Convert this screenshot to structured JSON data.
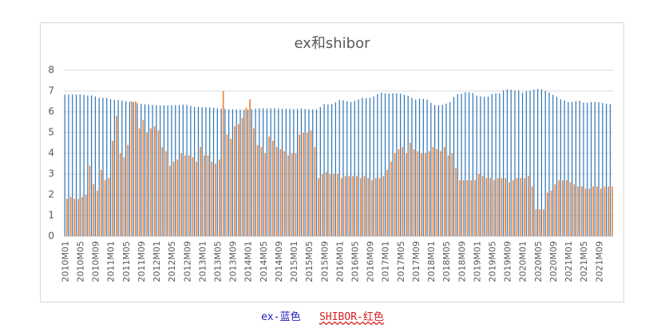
{
  "chart_data": {
    "type": "bar",
    "title": "ex和shibor",
    "categories": [
      "2010M01",
      null,
      null,
      null,
      "2010M05",
      null,
      null,
      null,
      "2010M09",
      null,
      null,
      null,
      "2011M01",
      null,
      null,
      null,
      "2011M05",
      null,
      null,
      null,
      "2011M09",
      null,
      null,
      null,
      "2012M01",
      null,
      null,
      null,
      "2012M05",
      null,
      null,
      null,
      "2012M09",
      null,
      null,
      null,
      "2013M01",
      null,
      null,
      null,
      "2013M05",
      null,
      null,
      null,
      "2013M09",
      null,
      null,
      null,
      "2014M01",
      null,
      null,
      null,
      "2014M05",
      null,
      null,
      null,
      "2014M09",
      null,
      null,
      null,
      "2015M01",
      null,
      null,
      null,
      "2015M05",
      null,
      null,
      null,
      "2015M09",
      null,
      null,
      null,
      "2016M01",
      null,
      null,
      null,
      "2016M05",
      null,
      null,
      null,
      "2016M09",
      null,
      null,
      null,
      "2017M01",
      null,
      null,
      null,
      "2017M05",
      null,
      null,
      null,
      "2017M09",
      null,
      null,
      null,
      "2018M01",
      null,
      null,
      null,
      "2018M05",
      null,
      null,
      null,
      "2018M09",
      null,
      null,
      null,
      "2019M01",
      null,
      null,
      null,
      "2019M05",
      null,
      null,
      null,
      "2019M09",
      null,
      null,
      null,
      "2020M01",
      null,
      null,
      null,
      "2020M05",
      null,
      null,
      null,
      "2020M09",
      null,
      null,
      null,
      "2021M01",
      null,
      null,
      null,
      "2021M05",
      null,
      null,
      null,
      "2021M09",
      null,
      null,
      null
    ],
    "series": [
      {
        "color": "#2e75b6",
        "values": [
          6.83,
          6.83,
          6.83,
          6.83,
          6.83,
          6.82,
          6.78,
          6.79,
          6.74,
          6.67,
          6.67,
          6.66,
          6.6,
          6.58,
          6.57,
          6.53,
          6.5,
          6.48,
          6.46,
          6.41,
          6.38,
          6.36,
          6.34,
          6.32,
          6.31,
          6.3,
          6.31,
          6.3,
          6.31,
          6.32,
          6.32,
          6.34,
          6.33,
          6.28,
          6.23,
          6.23,
          6.22,
          6.22,
          6.21,
          6.19,
          6.16,
          6.15,
          6.14,
          6.12,
          6.12,
          6.11,
          6.1,
          6.09,
          6.1,
          6.12,
          6.15,
          6.16,
          6.16,
          6.15,
          6.16,
          6.16,
          6.15,
          6.14,
          6.14,
          6.14,
          6.13,
          6.14,
          6.15,
          6.13,
          6.12,
          6.11,
          6.12,
          6.23,
          6.37,
          6.35,
          6.37,
          6.45,
          6.57,
          6.55,
          6.51,
          6.47,
          6.53,
          6.59,
          6.67,
          6.65,
          6.67,
          6.74,
          6.85,
          6.92,
          6.89,
          6.87,
          6.89,
          6.89,
          6.87,
          6.81,
          6.77,
          6.67,
          6.59,
          6.63,
          6.62,
          6.59,
          6.43,
          6.32,
          6.31,
          6.33,
          6.39,
          6.47,
          6.72,
          6.85,
          6.86,
          6.94,
          6.94,
          6.9,
          6.78,
          6.74,
          6.72,
          6.73,
          6.85,
          6.88,
          6.88,
          7.03,
          7.08,
          7.06,
          7.02,
          7.02,
          6.92,
          6.99,
          7.02,
          7.07,
          7.1,
          7.08,
          7.0,
          6.93,
          6.81,
          6.72,
          6.6,
          6.54,
          6.47,
          6.47,
          6.51,
          6.53,
          6.43,
          6.43,
          6.47,
          6.48,
          6.46,
          6.42,
          6.39,
          6.37
        ]
      },
      {
        "color": "#ed7d31",
        "values": [
          1.8,
          1.9,
          1.8,
          1.8,
          1.9,
          2.0,
          3.4,
          2.5,
          2.2,
          3.2,
          2.7,
          2.8,
          4.6,
          5.8,
          4.0,
          3.8,
          4.4,
          6.5,
          6.5,
          5.2,
          5.6,
          5.0,
          5.2,
          5.3,
          5.1,
          4.3,
          4.1,
          3.4,
          3.6,
          3.7,
          4.0,
          3.9,
          3.9,
          3.8,
          3.6,
          4.3,
          3.9,
          3.9,
          3.6,
          3.5,
          3.7,
          7.0,
          4.9,
          4.7,
          5.3,
          5.4,
          5.7,
          6.2,
          6.6,
          5.2,
          4.4,
          4.3,
          4.0,
          4.8,
          4.6,
          4.3,
          4.2,
          4.1,
          3.9,
          4.0,
          4.0,
          4.9,
          5.0,
          5.0,
          5.1,
          4.3,
          2.8,
          3.0,
          3.1,
          3.0,
          3.0,
          3.0,
          2.8,
          2.9,
          2.9,
          2.9,
          2.9,
          2.8,
          2.9,
          2.8,
          2.7,
          2.8,
          2.8,
          2.9,
          3.2,
          3.6,
          4.0,
          4.2,
          4.3,
          4.0,
          4.5,
          4.2,
          4.1,
          4.0,
          4.0,
          4.1,
          4.3,
          4.2,
          4.1,
          4.3,
          3.9,
          4.0,
          3.3,
          2.7,
          2.7,
          2.7,
          2.7,
          2.7,
          3.0,
          2.9,
          2.8,
          2.8,
          2.7,
          2.8,
          2.8,
          2.8,
          2.6,
          2.7,
          2.8,
          2.8,
          2.8,
          2.9,
          2.4,
          1.3,
          1.3,
          1.3,
          2.1,
          2.2,
          2.5,
          2.7,
          2.7,
          2.7,
          2.6,
          2.5,
          2.4,
          2.4,
          2.3,
          2.3,
          2.4,
          2.4,
          2.3,
          2.4,
          2.4,
          2.4
        ]
      }
    ],
    "ylim": [
      0,
      8
    ],
    "yticks": [
      0,
      1,
      2,
      3,
      4,
      5,
      6,
      7,
      8
    ],
    "grid": true
  },
  "caption": [
    "ex-蓝色",
    "SHIBOR-红色"
  ]
}
